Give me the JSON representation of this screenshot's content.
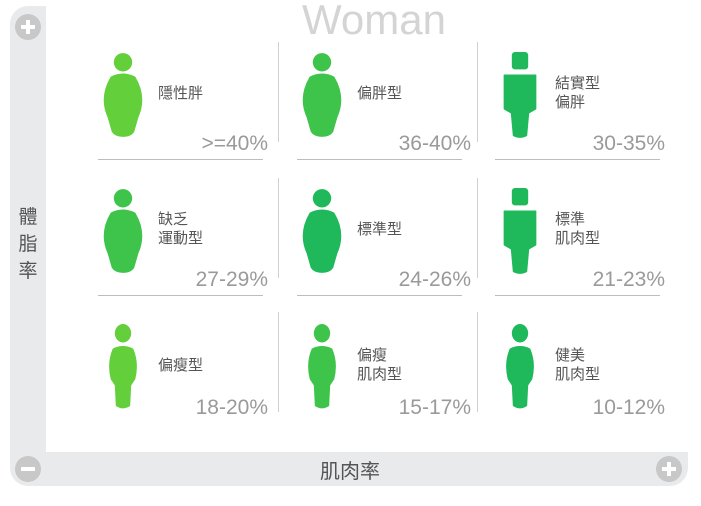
{
  "title": "Woman",
  "y_axis": {
    "label": "體脂率"
  },
  "x_axis": {
    "label": "肌肉率"
  },
  "colors": {
    "light_green": "#63cf3b",
    "mid_green": "#3fc44b",
    "dark_green": "#1fb85a"
  },
  "cells": [
    {
      "label": "隱性胖",
      "range": ">=40%",
      "shape": "round",
      "color": "#63cf3b"
    },
    {
      "label": "偏胖型",
      "range": "36-40%",
      "shape": "round",
      "color": "#3fc44b"
    },
    {
      "label": "結實型\n偏胖",
      "range": "30-35%",
      "shape": "square",
      "color": "#1fb85a"
    },
    {
      "label": "缺乏\n運動型",
      "range": "27-29%",
      "shape": "round",
      "color": "#3fc44b"
    },
    {
      "label": "標準型",
      "range": "24-26%",
      "shape": "round",
      "color": "#1fb85a"
    },
    {
      "label": "標準\n肌肉型",
      "range": "21-23%",
      "shape": "square",
      "color": "#1fb85a"
    },
    {
      "label": "偏瘦型",
      "range": "18-20%",
      "shape": "slim",
      "color": "#63cf3b"
    },
    {
      "label": "偏瘦\n肌肉型",
      "range": "15-17%",
      "shape": "slim",
      "color": "#3fc44b"
    },
    {
      "label": "健美\n肌肉型",
      "range": "10-12%",
      "shape": "slim",
      "color": "#1fb85a"
    }
  ]
}
